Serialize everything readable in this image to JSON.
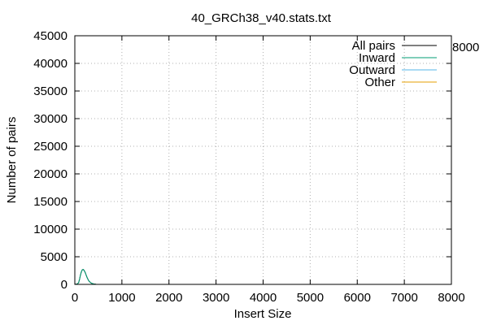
{
  "chart_data": {
    "type": "line",
    "title": "40_GRCh38_v40.stats.txt",
    "xlabel": "Insert Size",
    "ylabel": "Number of pairs",
    "xlim": [
      0,
      8000
    ],
    "ylim": [
      0,
      45000
    ],
    "x_ticks": [
      0,
      1000,
      2000,
      3000,
      4000,
      5000,
      6000,
      7000,
      8000
    ],
    "y_ticks": [
      0,
      5000,
      10000,
      15000,
      20000,
      25000,
      30000,
      35000,
      40000,
      45000
    ],
    "x_tick_labels": [
      "0",
      "1000",
      "2000",
      "3000",
      "4000",
      "5000",
      "6000",
      "7000",
      "8000"
    ],
    "y_tick_labels": [
      "0",
      "5000",
      "10000",
      "15000",
      "20000",
      "25000",
      "30000",
      "35000",
      "40000",
      "45000"
    ],
    "extra_label": "8000",
    "grid": true,
    "legend_position": "top-right",
    "series": [
      {
        "name": "All pairs",
        "color": "#000000",
        "x": [
          0,
          50,
          80,
          100,
          120,
          140,
          160,
          180,
          200,
          220,
          240,
          260,
          280,
          300,
          330,
          360,
          400,
          450,
          500
        ],
        "y": [
          0,
          50,
          300,
          900,
          1700,
          2300,
          2650,
          2700,
          2500,
          2150,
          1700,
          1250,
          900,
          600,
          350,
          180,
          80,
          20,
          0
        ]
      },
      {
        "name": "Inward",
        "color": "#009e73",
        "x": [
          0,
          50,
          80,
          100,
          120,
          140,
          160,
          180,
          200,
          220,
          240,
          260,
          280,
          300,
          330,
          360,
          400,
          450,
          500
        ],
        "y": [
          0,
          50,
          300,
          900,
          1700,
          2300,
          2650,
          2700,
          2500,
          2150,
          1700,
          1250,
          900,
          600,
          350,
          180,
          80,
          20,
          0
        ]
      },
      {
        "name": "Outward",
        "color": "#56b4e9",
        "x": [
          0,
          200,
          400,
          500
        ],
        "y": [
          0,
          0,
          0,
          0
        ]
      },
      {
        "name": "Other",
        "color": "#e69f00",
        "x": [
          0,
          200,
          400,
          500
        ],
        "y": [
          0,
          0,
          0,
          0
        ]
      }
    ]
  }
}
